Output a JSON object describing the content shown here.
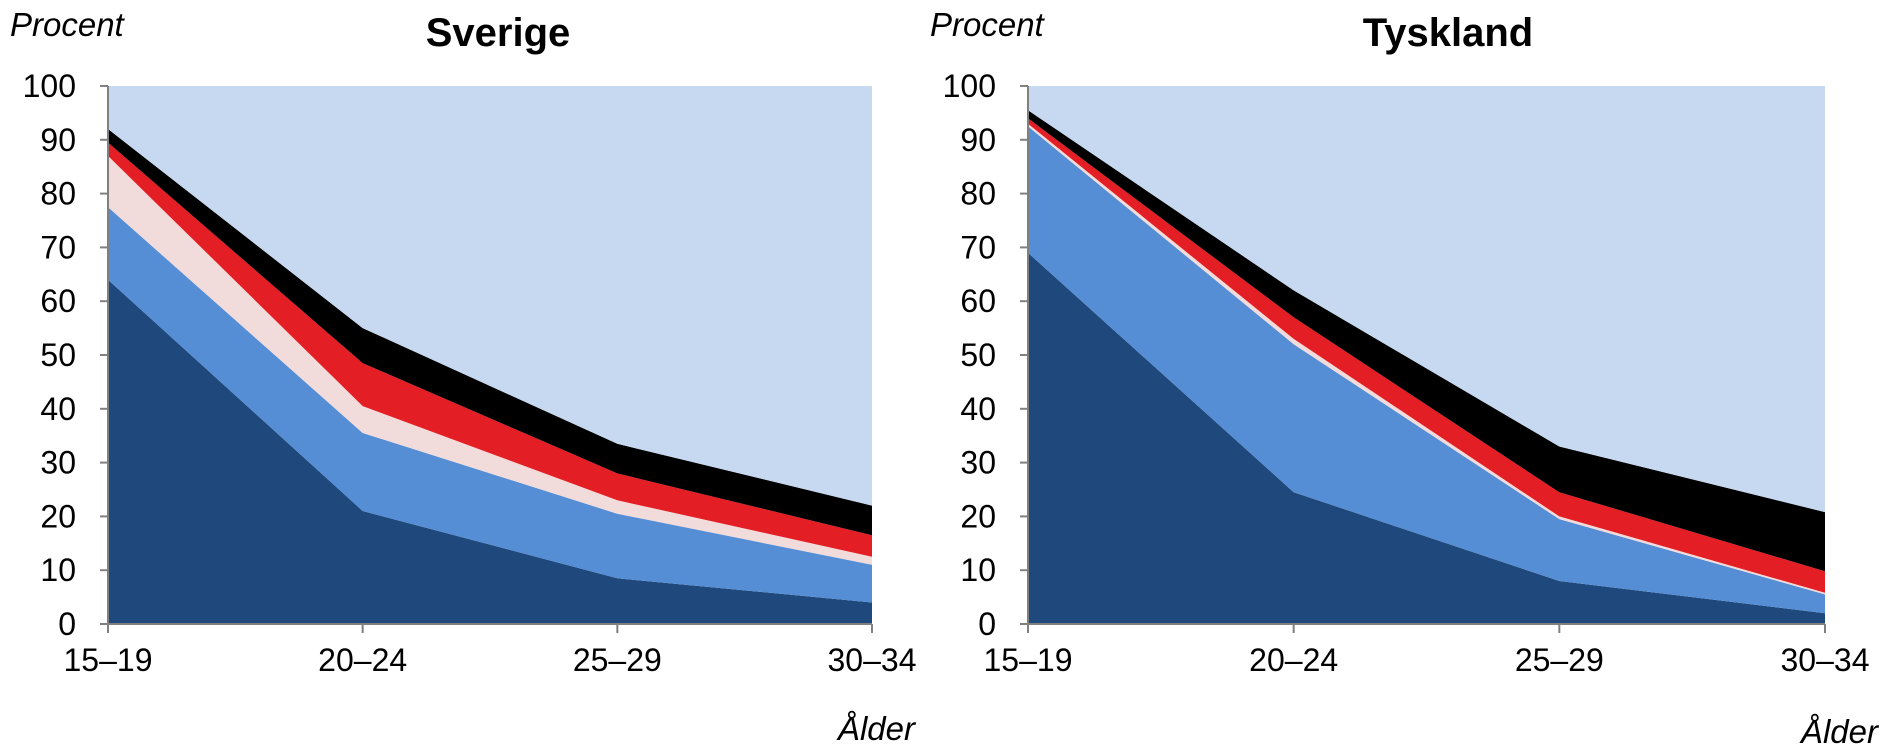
{
  "chart_data": [
    {
      "type": "area",
      "stacked": true,
      "title": "Sverige",
      "ylabel": "Procent",
      "xlabel": "Ålder",
      "categories": [
        "15–19",
        "20–24",
        "25–29",
        "30–34"
      ],
      "ylim": [
        0,
        100
      ],
      "yticks": [
        0,
        10,
        20,
        30,
        40,
        50,
        60,
        70,
        80,
        90,
        100
      ],
      "grid": false,
      "series": [
        {
          "values": [
            64,
            21,
            8.5,
            4
          ],
          "color": "#1f497d"
        },
        {
          "values": [
            13.5,
            14.5,
            12,
            7
          ],
          "color": "#558ed5"
        },
        {
          "values": [
            9.5,
            5,
            2.5,
            1.5
          ],
          "color": "#f2dcdb"
        },
        {
          "values": [
            2.5,
            8,
            5,
            4
          ],
          "color": "#e31e24"
        },
        {
          "values": [
            2.5,
            6.5,
            5.5,
            5.5
          ],
          "color": "#000000"
        },
        {
          "values": [
            8,
            45,
            66.5,
            78
          ],
          "color": "#c6d9f1"
        }
      ]
    },
    {
      "type": "area",
      "stacked": true,
      "title": "Tyskland",
      "ylabel": "Procent",
      "xlabel": "Ålder",
      "categories": [
        "15–19",
        "20–24",
        "25–29",
        "30–34"
      ],
      "ylim": [
        0,
        100
      ],
      "yticks": [
        0,
        10,
        20,
        30,
        40,
        50,
        60,
        70,
        80,
        90,
        100
      ],
      "grid": false,
      "series": [
        {
          "values": [
            69,
            24.5,
            8,
            2
          ],
          "color": "#1f497d"
        },
        {
          "values": [
            23.5,
            27.5,
            11.5,
            3.5
          ],
          "color": "#558ed5"
        },
        {
          "values": [
            0.5,
            1,
            0.5,
            0.3
          ],
          "color": "#f2dcdb"
        },
        {
          "values": [
            1,
            4,
            4.5,
            4
          ],
          "color": "#e31e24"
        },
        {
          "values": [
            1.5,
            5,
            8.5,
            11
          ],
          "color": "#000000"
        },
        {
          "values": [
            4.5,
            38,
            67,
            79.2
          ],
          "color": "#c6d9f1"
        }
      ]
    }
  ]
}
